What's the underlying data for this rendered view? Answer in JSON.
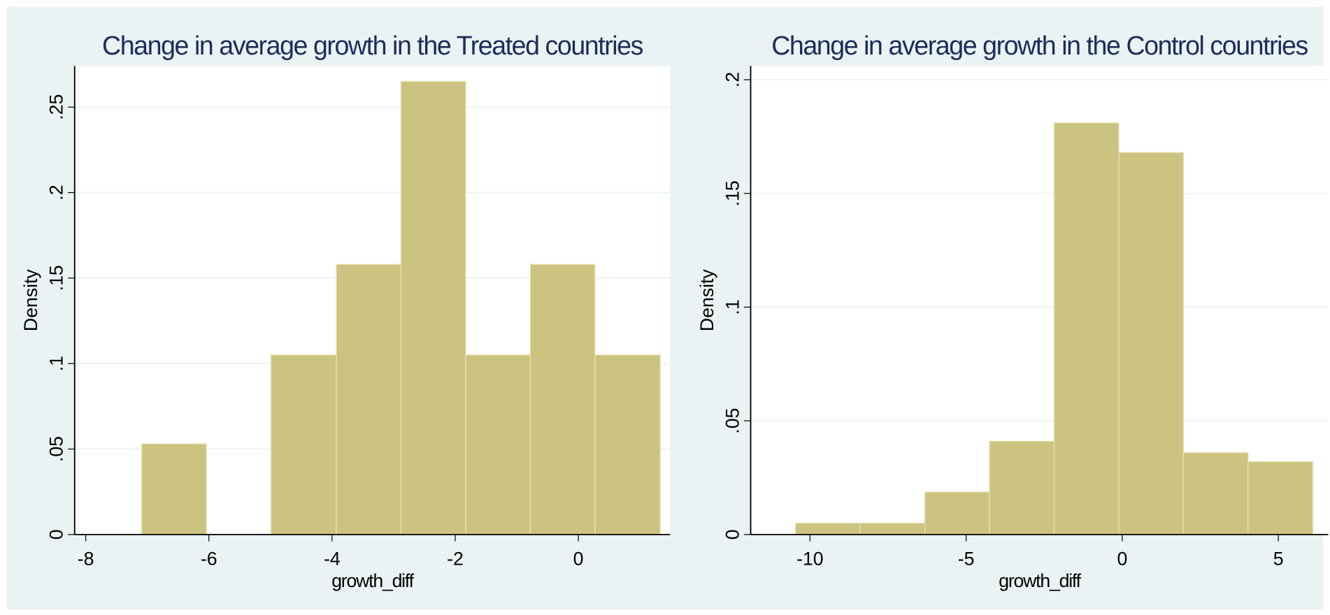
{
  "chart_data": [
    {
      "type": "histogram",
      "title": "Change in average growth in the Treated countries",
      "x_label": "growth_diff",
      "y_label": "Density",
      "bins": [
        -7.09,
        -6.04,
        -4.99,
        -3.93,
        -2.88,
        -1.83,
        -0.78,
        0.27,
        1.33
      ],
      "values": [
        0.053,
        0,
        0.105,
        0.158,
        0.265,
        0.105,
        0.158,
        0.105
      ],
      "color": "#cbc37f",
      "xlim": [
        -8.18,
        1.49
      ],
      "ylim": [
        0,
        0.274
      ],
      "xticks": [
        -8,
        -6,
        -4,
        -2,
        0
      ],
      "yticks": [
        0,
        {
          "value": 0.05,
          "label": ".05"
        },
        {
          "value": 0.1,
          "label": ".1"
        },
        {
          "value": 0.15,
          "label": ".15"
        },
        {
          "value": 0.2,
          "label": ".2"
        },
        {
          "value": 0.25,
          "label": ".25"
        }
      ],
      "grid": true
    },
    {
      "type": "histogram",
      "title": "Change in average growth in the Control countries",
      "x_label": "growth_diff",
      "y_label": "Density",
      "bins": [
        -10.46,
        -8.39,
        -6.32,
        -4.25,
        -2.18,
        -0.11,
        1.96,
        4.03,
        6.1
      ],
      "values": [
        0.005,
        0.005,
        0.0187,
        0.041,
        0.181,
        0.168,
        0.036,
        0.032
      ],
      "color": "#cbc37f",
      "xlim": [
        -11.9,
        6.6
      ],
      "ylim": [
        0,
        0.206
      ],
      "xticks": [
        -10,
        -5,
        0,
        5
      ],
      "yticks": [
        0,
        {
          "value": 0.05,
          "label": ".05"
        },
        {
          "value": 0.1,
          "label": ".1"
        },
        {
          "value": 0.15,
          "label": ".15"
        },
        {
          "value": 0.2,
          "label": ".2"
        }
      ],
      "grid": true
    }
  ]
}
